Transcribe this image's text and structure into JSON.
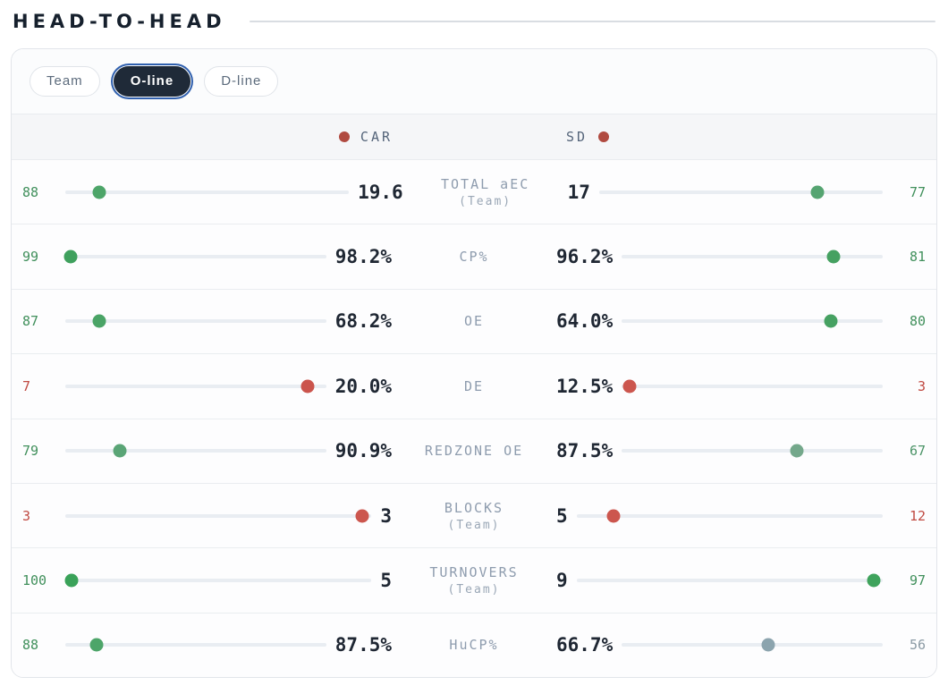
{
  "page": {
    "title": "HEAD-TO-HEAD"
  },
  "tabs": [
    {
      "label": "Team",
      "active": false
    },
    {
      "label": "O-line",
      "active": true
    },
    {
      "label": "D-line",
      "active": false
    }
  ],
  "teams": {
    "left": {
      "name": "CAR",
      "dot_color": "#b04a40"
    },
    "right": {
      "name": "SD",
      "dot_color": "#b04a40"
    }
  },
  "rows": [
    {
      "label": "TOTAL aEC",
      "sublabel": "(Team)",
      "left": {
        "pct": 88,
        "pct_color": "#41905c",
        "value": "19.6",
        "dot_color": "#4da569"
      },
      "right": {
        "pct": 77,
        "pct_color": "#41905c",
        "value": "17",
        "dot_color": "#55a471"
      }
    },
    {
      "label": "CP%",
      "sublabel": "",
      "left": {
        "pct": 99,
        "pct_color": "#41905c",
        "value": "98.2%",
        "dot_color": "#3fa05d"
      },
      "right": {
        "pct": 81,
        "pct_color": "#41905c",
        "value": "96.2%",
        "dot_color": "#45a161"
      }
    },
    {
      "label": "OE",
      "sublabel": "",
      "left": {
        "pct": 87,
        "pct_color": "#41905c",
        "value": "68.2%",
        "dot_color": "#4aa466"
      },
      "right": {
        "pct": 80,
        "pct_color": "#41905c",
        "value": "64.0%",
        "dot_color": "#46a162"
      }
    },
    {
      "label": "DE",
      "sublabel": "",
      "left": {
        "pct": 7,
        "pct_color": "#c04a42",
        "value": "20.0%",
        "dot_color": "#cb544c"
      },
      "right": {
        "pct": 3,
        "pct_color": "#c04a42",
        "value": "12.5%",
        "dot_color": "#cc564e"
      }
    },
    {
      "label": "REDZONE OE",
      "sublabel": "",
      "left": {
        "pct": 79,
        "pct_color": "#41905c",
        "value": "90.9%",
        "dot_color": "#5aa576"
      },
      "right": {
        "pct": 67,
        "pct_color": "#4c9468",
        "value": "87.5%",
        "dot_color": "#74a88b"
      }
    },
    {
      "label": "BLOCKS",
      "sublabel": "(Team)",
      "left": {
        "pct": 3,
        "pct_color": "#c04a42",
        "value": "3",
        "dot_color": "#cc564e"
      },
      "right": {
        "pct": 12,
        "pct_color": "#c04a42",
        "value": "5",
        "dot_color": "#cc564e"
      }
    },
    {
      "label": "TURNOVERS",
      "sublabel": "(Team)",
      "left": {
        "pct": 100,
        "pct_color": "#41905c",
        "value": "5",
        "dot_color": "#3aa259"
      },
      "right": {
        "pct": 97,
        "pct_color": "#41905c",
        "value": "9",
        "dot_color": "#3fa35c"
      }
    },
    {
      "label": "HuCP%",
      "sublabel": "",
      "left": {
        "pct": 88,
        "pct_color": "#41905c",
        "value": "87.5%",
        "dot_color": "#4da569"
      },
      "right": {
        "pct": 56,
        "pct_color": "#8b9aa4",
        "value": "66.7%",
        "dot_color": "#8ca4ae"
      }
    }
  ]
}
